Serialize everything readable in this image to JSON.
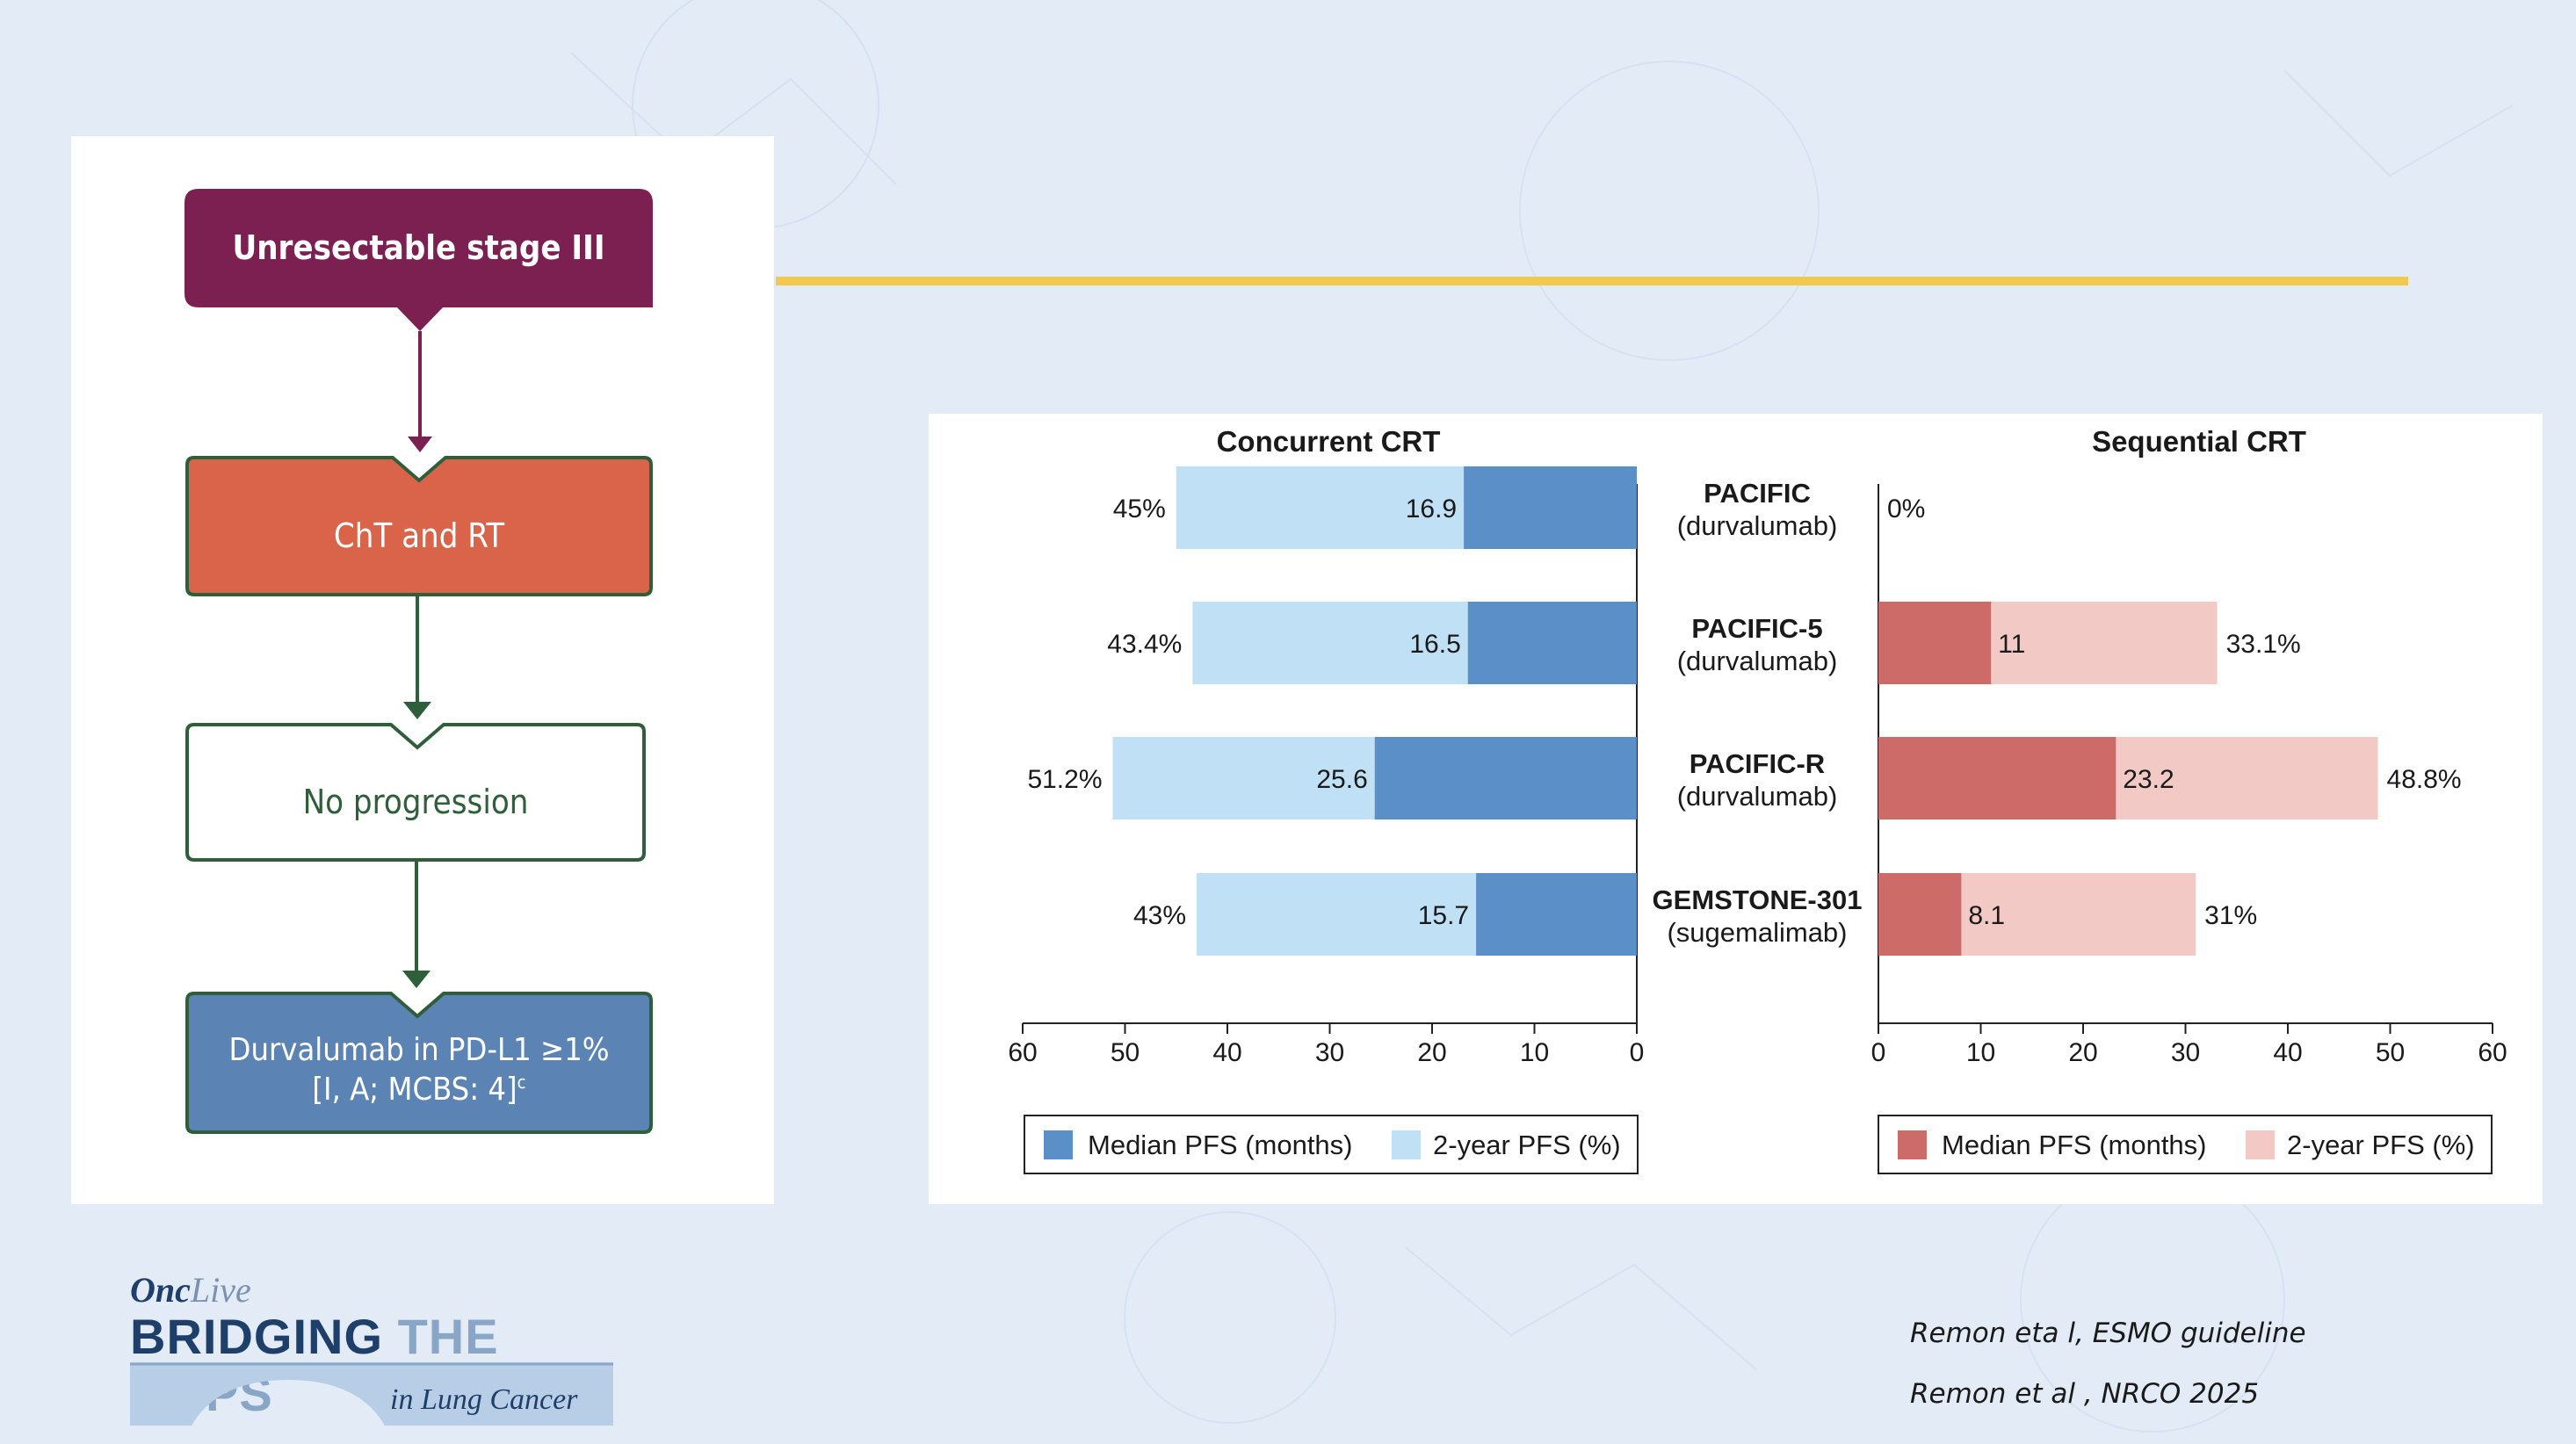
{
  "flowchart": {
    "start": "Unresectable stage III",
    "step1": "ChT and RT",
    "step2": "No progression",
    "end_line1": "Durvalumab in PD-L1 ≥1%",
    "end_line2": "[I, A; MCBS: 4]",
    "end_sup": "c"
  },
  "colors": {
    "start_box": "#7b2050",
    "step1_box": "#d9644a",
    "end_box": "#5b84b4",
    "green_border": "#2f5f3a",
    "divider": "#f2c94c",
    "concurrent_median": "#5b8fc7",
    "concurrent_pfs": "#bfe0f5",
    "sequential_median": "#cd6b68",
    "sequential_pfs": "#f3c9c6"
  },
  "chart_data": {
    "type": "bar",
    "orientation": "horizontal",
    "trials": [
      {
        "name": "PACIFIC",
        "drug": "(durvalumab)"
      },
      {
        "name": "PACIFIC-5",
        "drug": "(durvalumab)"
      },
      {
        "name": "PACIFIC-R",
        "drug": "(durvalumab)"
      },
      {
        "name": "GEMSTONE-301",
        "drug": "(sugemalimab)"
      }
    ],
    "panels": [
      {
        "title": "Concurrent CRT",
        "direction": "leftward",
        "xlim": [
          0,
          60
        ],
        "ticks": [
          "60",
          "50",
          "40",
          "30",
          "20",
          "10",
          "0"
        ],
        "series": [
          {
            "name": "Median PFS (months)",
            "values": [
              16.9,
              16.5,
              25.6,
              15.7
            ],
            "labels": [
              "16.9",
              "16.5",
              "25.6",
              "15.7"
            ]
          },
          {
            "name": "2-year PFS (%)",
            "values": [
              45,
              43.4,
              51.2,
              43
            ],
            "labels": [
              "45%",
              "43.4%",
              "51.2%",
              "43%"
            ]
          }
        ],
        "legend_position": "bottom"
      },
      {
        "title": "Sequential CRT",
        "direction": "rightward",
        "xlim": [
          0,
          60
        ],
        "ticks": [
          "0",
          "10",
          "20",
          "30",
          "40",
          "50",
          "60"
        ],
        "series": [
          {
            "name": "Median PFS (months)",
            "values": [
              0,
              11,
              23.2,
              8.1
            ],
            "labels": [
              "",
              "11",
              "23.2",
              "8.1"
            ]
          },
          {
            "name": "2-year PFS (%)",
            "values": [
              0,
              33.1,
              48.8,
              31
            ],
            "labels": [
              "0%",
              "33.1%",
              "48.8%",
              "31%"
            ]
          }
        ],
        "legend_position": "bottom"
      }
    ]
  },
  "logo": {
    "brand_bold": "Onc",
    "brand_light": "Live",
    "title_dark": "BRIDGING",
    "title_light": "THE GAPS",
    "subtitle": "in Lung Cancer"
  },
  "references": [
    "Remon eta l, ESMO guideline",
    "Remon et al , NRCO 2025"
  ]
}
